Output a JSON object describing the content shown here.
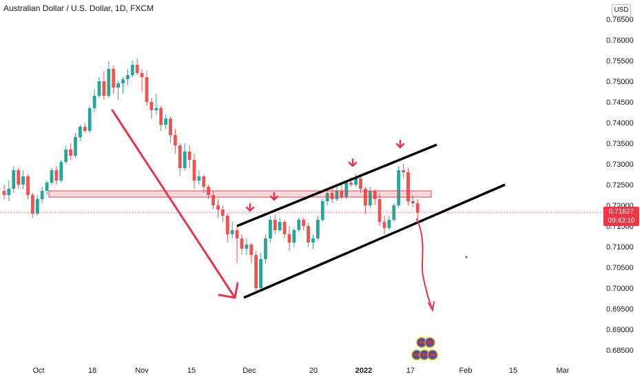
{
  "header": {
    "title": "Australian Dollar / U.S. Dollar, 1D, FXCM",
    "currency": "USD"
  },
  "price_tag": {
    "price": "0.71827",
    "countdown": "09:43:10"
  },
  "colors": {
    "up": "#26a69a",
    "down": "#ef5350",
    "annotation_red": "#e8344a",
    "channel": "#000000"
  },
  "chart_data": {
    "type": "candlestick",
    "title": "Australian Dollar / U.S. Dollar, 1D, FXCM",
    "y_ticks": [
      "0.76500",
      "0.76000",
      "0.75500",
      "0.75000",
      "0.74500",
      "0.74000",
      "0.73500",
      "0.73000",
      "0.72500",
      "0.72000",
      "0.71500",
      "0.71000",
      "0.70500",
      "0.70000",
      "0.69500",
      "0.69000",
      "0.68500"
    ],
    "x_ticks": [
      "Oct",
      "18",
      "Nov",
      "15",
      "Dec",
      "20",
      "2022",
      "17",
      "Feb",
      "15",
      "Mar"
    ],
    "ylim": [
      0.683,
      0.767
    ],
    "last_price": 0.71827,
    "resistance_zone": [
      0.722,
      0.7235
    ],
    "candles": [
      [
        0.7235,
        0.725,
        0.7215,
        0.7225
      ],
      [
        0.7225,
        0.726,
        0.721,
        0.724
      ],
      [
        0.724,
        0.7295,
        0.723,
        0.7285
      ],
      [
        0.7285,
        0.729,
        0.724,
        0.725
      ],
      [
        0.725,
        0.7285,
        0.724,
        0.727
      ],
      [
        0.727,
        0.7275,
        0.7215,
        0.7225
      ],
      [
        0.7225,
        0.723,
        0.717,
        0.718
      ],
      [
        0.718,
        0.7225,
        0.7175,
        0.7215
      ],
      [
        0.7215,
        0.7245,
        0.7205,
        0.7235
      ],
      [
        0.7235,
        0.726,
        0.7225,
        0.7255
      ],
      [
        0.7255,
        0.729,
        0.725,
        0.7285
      ],
      [
        0.7285,
        0.7295,
        0.725,
        0.726
      ],
      [
        0.726,
        0.731,
        0.7255,
        0.7305
      ],
      [
        0.7305,
        0.7345,
        0.73,
        0.7335
      ],
      [
        0.7335,
        0.735,
        0.731,
        0.732
      ],
      [
        0.732,
        0.7375,
        0.7315,
        0.7365
      ],
      [
        0.7365,
        0.7395,
        0.7355,
        0.739
      ],
      [
        0.739,
        0.74,
        0.7375,
        0.738
      ],
      [
        0.738,
        0.744,
        0.7375,
        0.7435
      ],
      [
        0.7435,
        0.748,
        0.7425,
        0.7465
      ],
      [
        0.7465,
        0.751,
        0.746,
        0.75
      ],
      [
        0.75,
        0.7525,
        0.7455,
        0.7465
      ],
      [
        0.7465,
        0.7548,
        0.746,
        0.753
      ],
      [
        0.753,
        0.7538,
        0.747,
        0.7485
      ],
      [
        0.7485,
        0.75,
        0.7455,
        0.7495
      ],
      [
        0.7495,
        0.751,
        0.747,
        0.7505
      ],
      [
        0.7505,
        0.753,
        0.749,
        0.7515
      ],
      [
        0.7515,
        0.755,
        0.751,
        0.754
      ],
      [
        0.754,
        0.7556,
        0.7515,
        0.752
      ],
      [
        0.752,
        0.753,
        0.7475,
        0.751
      ],
      [
        0.751,
        0.7525,
        0.744,
        0.745
      ],
      [
        0.745,
        0.746,
        0.741,
        0.743
      ],
      [
        0.743,
        0.747,
        0.742,
        0.7435
      ],
      [
        0.7435,
        0.744,
        0.738,
        0.7395
      ],
      [
        0.7395,
        0.742,
        0.7385,
        0.741
      ],
      [
        0.741,
        0.7415,
        0.735,
        0.737
      ],
      [
        0.737,
        0.7385,
        0.7325,
        0.7345
      ],
      [
        0.7345,
        0.735,
        0.727,
        0.729
      ],
      [
        0.729,
        0.735,
        0.7285,
        0.733
      ],
      [
        0.733,
        0.7345,
        0.729,
        0.731
      ],
      [
        0.731,
        0.7325,
        0.724,
        0.726
      ],
      [
        0.726,
        0.7285,
        0.725,
        0.727
      ],
      [
        0.727,
        0.7275,
        0.723,
        0.7245
      ],
      [
        0.7245,
        0.725,
        0.7215,
        0.7225
      ],
      [
        0.7225,
        0.7235,
        0.719,
        0.72
      ],
      [
        0.72,
        0.7215,
        0.717,
        0.719
      ],
      [
        0.719,
        0.72,
        0.716,
        0.7175
      ],
      [
        0.7175,
        0.718,
        0.711,
        0.713
      ],
      [
        0.713,
        0.716,
        0.712,
        0.714
      ],
      [
        0.714,
        0.715,
        0.706,
        0.712
      ],
      [
        0.712,
        0.713,
        0.708,
        0.7095
      ],
      [
        0.7095,
        0.712,
        0.708,
        0.7105
      ],
      [
        0.7105,
        0.7108,
        0.706,
        0.708
      ],
      [
        0.708,
        0.709,
        0.699,
        0.7
      ],
      [
        0.7,
        0.7085,
        0.6995,
        0.707
      ],
      [
        0.707,
        0.713,
        0.706,
        0.712
      ],
      [
        0.712,
        0.7175,
        0.711,
        0.7165
      ],
      [
        0.7165,
        0.7178,
        0.713,
        0.714
      ],
      [
        0.714,
        0.717,
        0.7135,
        0.716
      ],
      [
        0.716,
        0.7165,
        0.712,
        0.713
      ],
      [
        0.713,
        0.715,
        0.709,
        0.711
      ],
      [
        0.711,
        0.7145,
        0.71,
        0.714
      ],
      [
        0.714,
        0.717,
        0.7135,
        0.7165
      ],
      [
        0.7165,
        0.717,
        0.714,
        0.715
      ],
      [
        0.715,
        0.7158,
        0.71,
        0.711
      ],
      [
        0.711,
        0.713,
        0.7095,
        0.712
      ],
      [
        0.712,
        0.7175,
        0.7115,
        0.7165
      ],
      [
        0.7165,
        0.7215,
        0.716,
        0.721
      ],
      [
        0.721,
        0.724,
        0.72,
        0.723
      ],
      [
        0.723,
        0.7245,
        0.7205,
        0.7215
      ],
      [
        0.7215,
        0.7245,
        0.721,
        0.7235
      ],
      [
        0.7235,
        0.725,
        0.7215,
        0.722
      ],
      [
        0.722,
        0.726,
        0.7215,
        0.7255
      ],
      [
        0.7255,
        0.7268,
        0.7245,
        0.725
      ],
      [
        0.725,
        0.7275,
        0.7245,
        0.7265
      ],
      [
        0.7265,
        0.727,
        0.723,
        0.724
      ],
      [
        0.724,
        0.7245,
        0.718,
        0.72
      ],
      [
        0.72,
        0.7245,
        0.7195,
        0.7235
      ],
      [
        0.7235,
        0.7238,
        0.72,
        0.7215
      ],
      [
        0.7215,
        0.723,
        0.715,
        0.716
      ],
      [
        0.716,
        0.7175,
        0.713,
        0.7145
      ],
      [
        0.7145,
        0.7175,
        0.714,
        0.7165
      ],
      [
        0.7165,
        0.7205,
        0.716,
        0.72
      ],
      [
        0.72,
        0.7295,
        0.7195,
        0.7285
      ],
      [
        0.7285,
        0.73,
        0.7265,
        0.728
      ],
      [
        0.728,
        0.729,
        0.72,
        0.721
      ],
      [
        0.721,
        0.7225,
        0.7195,
        0.7205
      ],
      [
        0.7205,
        0.7215,
        0.7165,
        0.7183
      ]
    ]
  },
  "annotations": {
    "arrow_labels": []
  }
}
